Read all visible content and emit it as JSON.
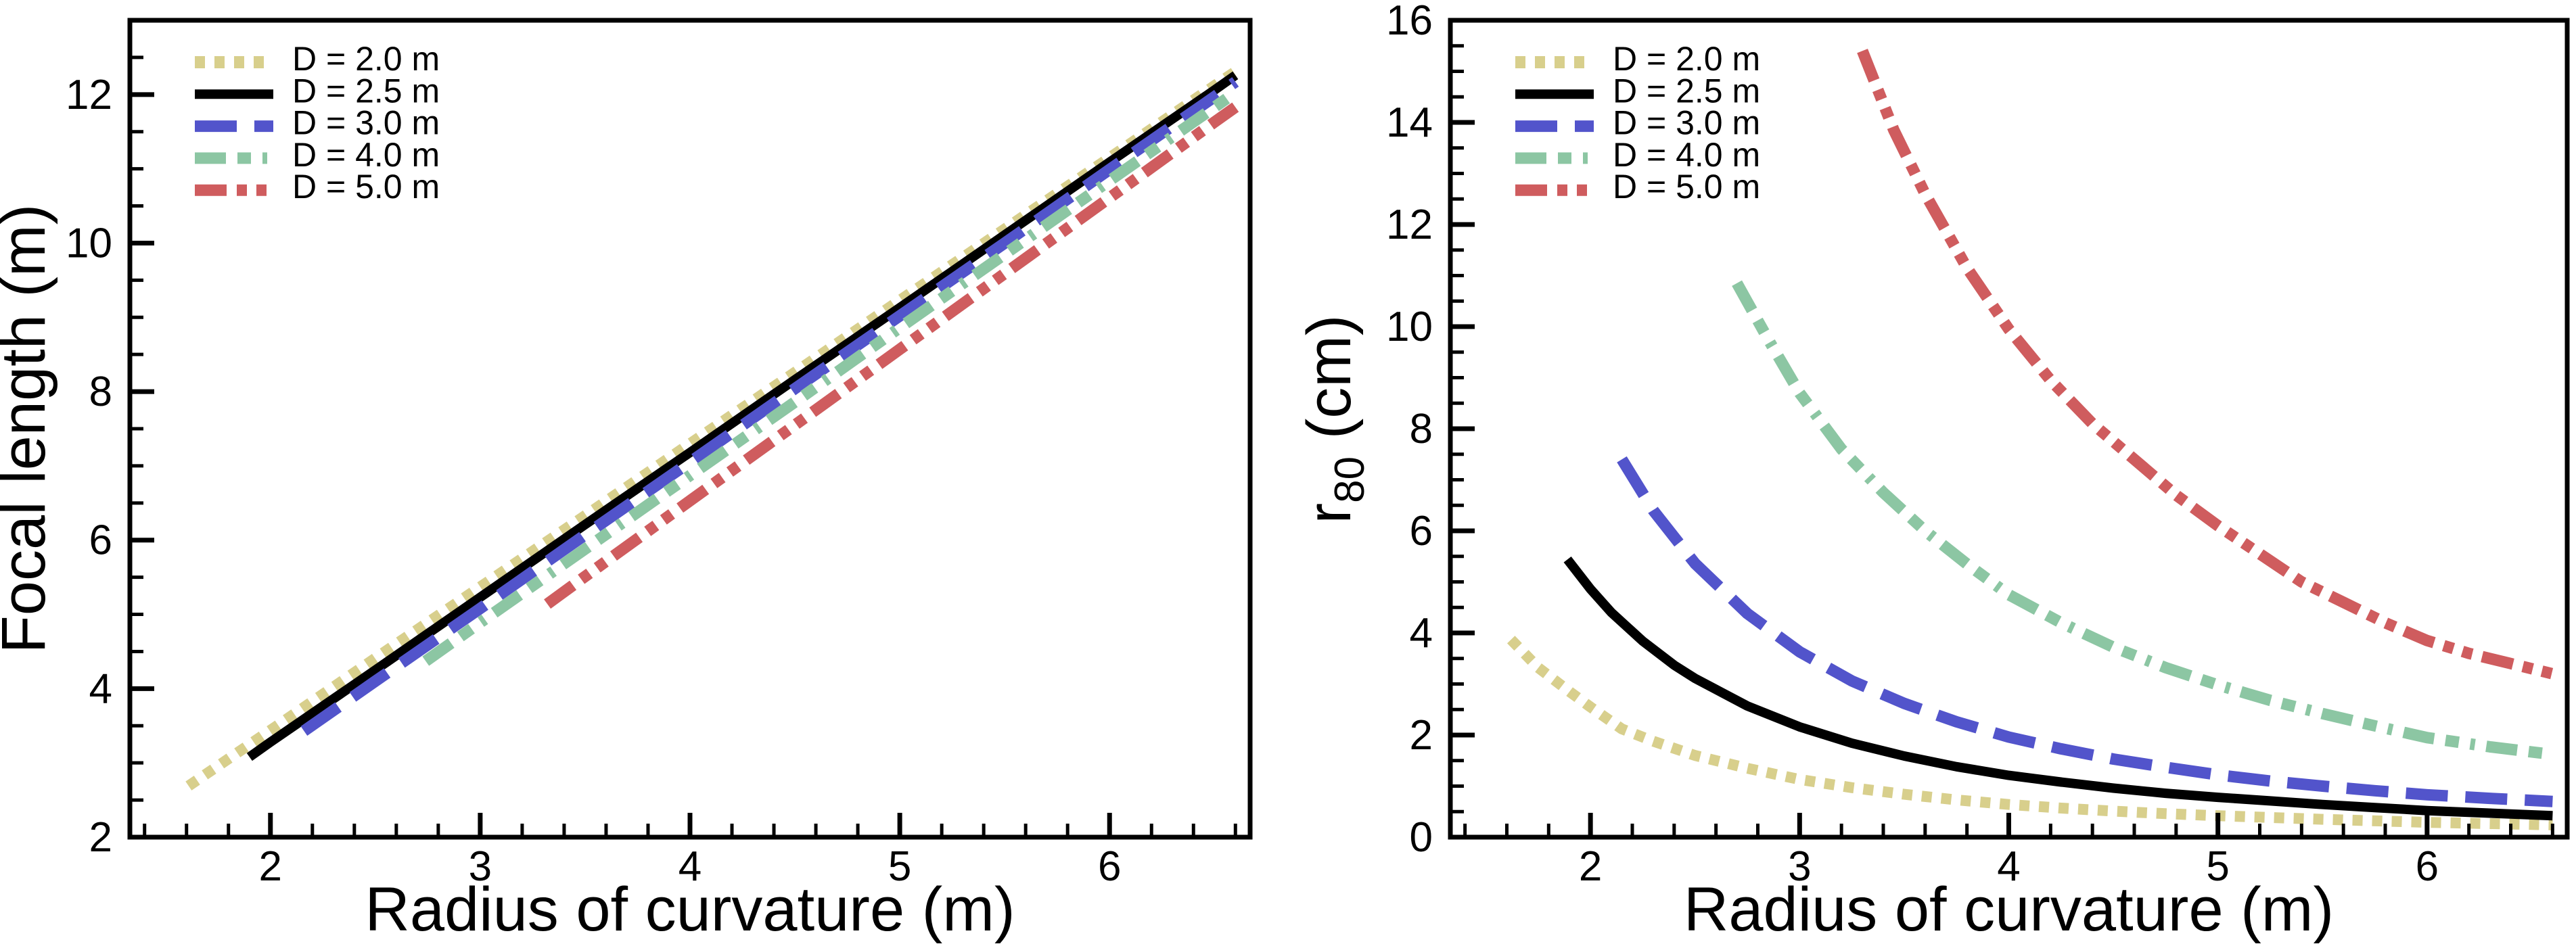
{
  "figure": {
    "description": "Two-panel line chart: focal length and r80 spot radius versus mirror radius of curvature for five aperture diameters D",
    "background_color": "#ffffff",
    "axis_color": "#000000"
  },
  "chart_data": [
    {
      "type": "line",
      "title": "",
      "xlabel": "Radius of curvature (m)",
      "ylabel": "Focal length (m)",
      "ylabel_rich": [
        {
          "t": "Focal length (m)"
        }
      ],
      "xlim": [
        1.33,
        6.67
      ],
      "ylim": [
        2,
        13
      ],
      "grid": false,
      "legend_position": "top-left",
      "x_major_ticks": [
        2,
        3,
        4,
        5,
        6
      ],
      "x_tick_labels": [
        "2",
        "3",
        "4",
        "5",
        "6"
      ],
      "x_minor_step": 0.2,
      "y_major_ticks": [
        2,
        4,
        6,
        8,
        10,
        12
      ],
      "y_tick_labels": [
        "2",
        "4",
        "6",
        "8",
        "10",
        "12"
      ],
      "y_minor_step": 0.5,
      "series": [
        {
          "name": "D = 2.0 m",
          "color": "#d8cf8c",
          "style": "dotted",
          "points": [
            [
              1.61,
              2.69
            ],
            [
              2,
              3.44
            ],
            [
              2.5,
              4.41
            ],
            [
              3,
              5.37
            ],
            [
              3.5,
              6.33
            ],
            [
              4,
              7.3
            ],
            [
              4.5,
              8.26
            ],
            [
              5,
              9.23
            ],
            [
              5.5,
              10.19
            ],
            [
              6,
              11.15
            ],
            [
              6.5,
              12.12
            ],
            [
              6.6,
              12.31
            ]
          ]
        },
        {
          "name": "D = 2.5 m",
          "color": "#000000",
          "style": "solid",
          "points": [
            [
              1.9,
              3.08
            ],
            [
              2,
              3.28
            ],
            [
              2.5,
              4.25
            ],
            [
              3,
              5.23
            ],
            [
              3.5,
              6.21
            ],
            [
              4,
              7.18
            ],
            [
              4.5,
              8.16
            ],
            [
              5,
              9.13
            ],
            [
              5.5,
              10.11
            ],
            [
              6,
              11.09
            ],
            [
              6.5,
              12.06
            ],
            [
              6.6,
              12.26
            ]
          ]
        },
        {
          "name": "D = 3.0 m",
          "color": "#5254cb",
          "style": "dashed",
          "points": [
            [
              2.16,
              3.43
            ],
            [
              2.5,
              4.1
            ],
            [
              3,
              5.08
            ],
            [
              3.5,
              6.07
            ],
            [
              4,
              7.05
            ],
            [
              4.5,
              8.04
            ],
            [
              5,
              9.02
            ],
            [
              5.5,
              10.0
            ],
            [
              6,
              10.99
            ],
            [
              6.5,
              11.97
            ],
            [
              6.6,
              12.17
            ]
          ]
        },
        {
          "name": "D = 4.0 m",
          "color": "#8cc6a3",
          "style": "dashdot",
          "points": [
            [
              2.74,
              4.37
            ],
            [
              3,
              4.89
            ],
            [
              3.5,
              5.88
            ],
            [
              4,
              6.87
            ],
            [
              4.5,
              7.86
            ],
            [
              5,
              8.86
            ],
            [
              5.5,
              9.85
            ],
            [
              6,
              10.84
            ],
            [
              6.5,
              11.83
            ],
            [
              6.6,
              12.03
            ]
          ]
        },
        {
          "name": "D = 5.0 m",
          "color": "#cf5c5e",
          "style": "dashdotdot",
          "points": [
            [
              3.32,
              5.14
            ],
            [
              3.5,
              5.51
            ],
            [
              4,
              6.53
            ],
            [
              4.5,
              7.55
            ],
            [
              5,
              8.57
            ],
            [
              5.5,
              9.59
            ],
            [
              6,
              10.61
            ],
            [
              6.5,
              11.63
            ],
            [
              6.6,
              11.83
            ]
          ]
        }
      ]
    },
    {
      "type": "line",
      "title": "",
      "xlabel": "Radius of curvature (m)",
      "ylabel": "r80 (cm)",
      "ylabel_rich": [
        {
          "t": "r"
        },
        {
          "t": "80",
          "sub": true
        },
        {
          "t": " (cm)"
        }
      ],
      "xlim": [
        1.33,
        6.67
      ],
      "ylim": [
        0,
        16
      ],
      "grid": false,
      "legend_position": "top-left",
      "x_major_ticks": [
        2,
        3,
        4,
        5,
        6
      ],
      "x_tick_labels": [
        "2",
        "3",
        "4",
        "5",
        "6"
      ],
      "x_minor_step": 0.2,
      "y_major_ticks": [
        0,
        2,
        4,
        6,
        8,
        10,
        12,
        14,
        16
      ],
      "y_tick_labels": [
        "0",
        "2",
        "4",
        "6",
        "8",
        "10",
        "12",
        "14",
        "16"
      ],
      "y_minor_step": 0.5,
      "series": [
        {
          "name": "D = 2.0 m",
          "color": "#d8cf8c",
          "style": "dotted",
          "points": [
            [
              1.62,
              3.87
            ],
            [
              1.75,
              3.32
            ],
            [
              1.9,
              2.85
            ],
            [
              2,
              2.55
            ],
            [
              2.15,
              2.12
            ],
            [
              2.3,
              1.88
            ],
            [
              2.5,
              1.6
            ],
            [
              2.75,
              1.35
            ],
            [
              3,
              1.13
            ],
            [
              3.25,
              0.97
            ],
            [
              3.5,
              0.84
            ],
            [
              3.75,
              0.73
            ],
            [
              4,
              0.64
            ],
            [
              4.25,
              0.57
            ],
            [
              4.5,
              0.51
            ],
            [
              4.75,
              0.46
            ],
            [
              5,
              0.42
            ],
            [
              5.5,
              0.35
            ],
            [
              6,
              0.29
            ],
            [
              6.6,
              0.24
            ]
          ]
        },
        {
          "name": "D = 2.5 m",
          "color": "#000000",
          "style": "solid",
          "points": [
            [
              1.89,
              5.44
            ],
            [
              2,
              4.86
            ],
            [
              2.1,
              4.4
            ],
            [
              2.25,
              3.84
            ],
            [
              2.4,
              3.37
            ],
            [
              2.5,
              3.11
            ],
            [
              2.75,
              2.57
            ],
            [
              3,
              2.16
            ],
            [
              3.25,
              1.84
            ],
            [
              3.5,
              1.59
            ],
            [
              3.75,
              1.38
            ],
            [
              4,
              1.21
            ],
            [
              4.25,
              1.08
            ],
            [
              4.5,
              0.96
            ],
            [
              4.75,
              0.86
            ],
            [
              5,
              0.78
            ],
            [
              5.25,
              0.71
            ],
            [
              5.5,
              0.64
            ],
            [
              5.75,
              0.58
            ],
            [
              6,
              0.52
            ],
            [
              6.3,
              0.47
            ],
            [
              6.6,
              0.42
            ]
          ]
        },
        {
          "name": "D = 3.0 m",
          "color": "#5254cb",
          "style": "dashed",
          "points": [
            [
              2.15,
              7.4
            ],
            [
              2.3,
              6.4
            ],
            [
              2.5,
              5.36
            ],
            [
              2.75,
              4.38
            ],
            [
              3,
              3.63
            ],
            [
              3.25,
              3.06
            ],
            [
              3.5,
              2.62
            ],
            [
              3.75,
              2.26
            ],
            [
              4,
              1.96
            ],
            [
              4.25,
              1.73
            ],
            [
              4.5,
              1.53
            ],
            [
              4.75,
              1.37
            ],
            [
              5,
              1.22
            ],
            [
              5.25,
              1.1
            ],
            [
              5.5,
              1.0
            ],
            [
              5.75,
              0.91
            ],
            [
              6,
              0.83
            ],
            [
              6.3,
              0.76
            ],
            [
              6.6,
              0.7
            ]
          ]
        },
        {
          "name": "D = 4.0 m",
          "color": "#8cc6a3",
          "style": "dashdot",
          "points": [
            [
              2.7,
              10.85
            ],
            [
              2.85,
              9.75
            ],
            [
              3,
              8.7
            ],
            [
              3.2,
              7.6
            ],
            [
              3.4,
              6.75
            ],
            [
              3.6,
              6.0
            ],
            [
              3.8,
              5.35
            ],
            [
              4,
              4.75
            ],
            [
              4.25,
              4.2
            ],
            [
              4.5,
              3.72
            ],
            [
              4.75,
              3.32
            ],
            [
              5,
              2.98
            ],
            [
              5.25,
              2.68
            ],
            [
              5.5,
              2.42
            ],
            [
              5.75,
              2.18
            ],
            [
              6,
              1.95
            ],
            [
              6.3,
              1.77
            ],
            [
              6.6,
              1.62
            ]
          ]
        },
        {
          "name": "D = 5.0 m",
          "color": "#cf5c5e",
          "style": "dashdotdot",
          "points": [
            [
              3.3,
              15.4
            ],
            [
              3.45,
              13.85
            ],
            [
              3.6,
              12.6
            ],
            [
              3.8,
              11.15
            ],
            [
              4,
              9.95
            ],
            [
              4.2,
              8.95
            ],
            [
              4.4,
              8.1
            ],
            [
              4.6,
              7.4
            ],
            [
              4.8,
              6.7
            ],
            [
              5,
              6.1
            ],
            [
              5.2,
              5.55
            ],
            [
              5.4,
              5.0
            ],
            [
              5.6,
              4.6
            ],
            [
              5.8,
              4.2
            ],
            [
              6,
              3.85
            ],
            [
              6.2,
              3.6
            ],
            [
              6.4,
              3.4
            ],
            [
              6.6,
              3.2
            ]
          ]
        }
      ]
    }
  ]
}
